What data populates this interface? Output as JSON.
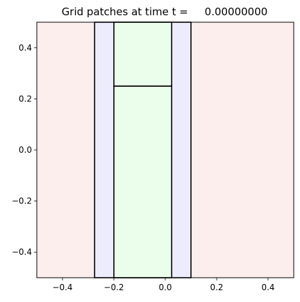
{
  "chart_data": {
    "type": "heatmap",
    "title": "Grid patches at time t =     0.00000000",
    "xlabel": "",
    "ylabel": "",
    "xlim": [
      -0.5,
      0.5
    ],
    "ylim": [
      -0.5,
      0.5
    ],
    "xticks": [
      {
        "value": -0.4,
        "label": "−0.4"
      },
      {
        "value": -0.2,
        "label": "−0.2"
      },
      {
        "value": 0.0,
        "label": "0.0"
      },
      {
        "value": 0.2,
        "label": "0.2"
      },
      {
        "value": 0.4,
        "label": "0.4"
      }
    ],
    "yticks": [
      {
        "value": -0.4,
        "label": "−0.4"
      },
      {
        "value": -0.2,
        "label": "−0.2"
      },
      {
        "value": 0.0,
        "label": "0.0"
      },
      {
        "value": 0.2,
        "label": "0.2"
      },
      {
        "value": 0.4,
        "label": "0.4"
      }
    ],
    "grid": false,
    "patches": [
      {
        "level": 1,
        "x0": -0.5,
        "x1": 0.5,
        "y0": -0.5,
        "y1": 0.5,
        "color": "#fdeeee"
      },
      {
        "level": 2,
        "x0": -0.275,
        "x1": 0.1,
        "y0": -0.5,
        "y1": 0.5,
        "color": "#ececfd"
      },
      {
        "level": 3,
        "x0": -0.2,
        "x1": 0.025,
        "y0": -0.5,
        "y1": 0.25,
        "color": "#ebfdeb"
      },
      {
        "level": 3,
        "x0": -0.2,
        "x1": 0.025,
        "y0": 0.25,
        "y1": 0.5,
        "color": "#ebfdeb"
      }
    ],
    "patch_edge_color": "#000000"
  }
}
